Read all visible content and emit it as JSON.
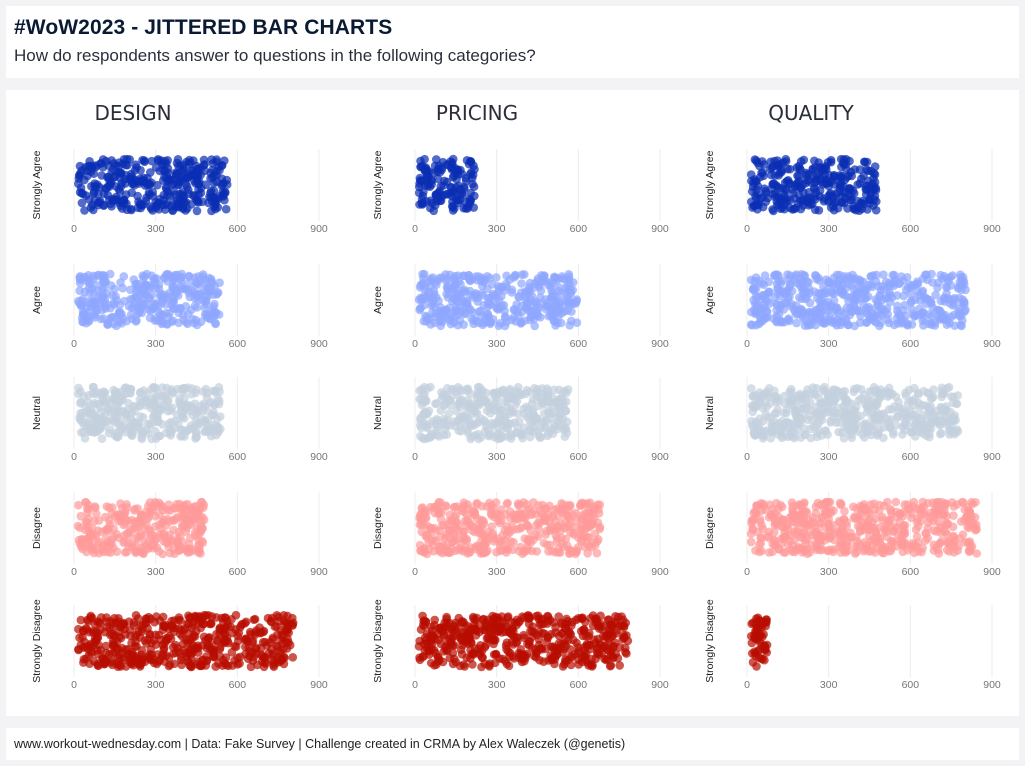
{
  "header": {
    "title": "#WoW2023 - JITTERED BAR CHARTS",
    "subtitle": "How do respondents answer to questions in the following categories?"
  },
  "footer": {
    "text": "www.workout-wednesday.com | Data: Fake Survey | Challenge created in CRMA by Alex Waleczek (@genetis)"
  },
  "colors": {
    "Strongly Agree": "#0a2db3",
    "Agree": "#8ea6ff",
    "Neutral": "#c3d0dd",
    "Disagree": "#ff9a9a",
    "Strongly Disagree": "#b80d00"
  },
  "chart_data": {
    "type": "scatter",
    "jitter": "vertical",
    "categories": [
      "DESIGN",
      "PRICING",
      "QUALITY"
    ],
    "responses": [
      "Strongly Agree",
      "Agree",
      "Neutral",
      "Disagree",
      "Strongly Disagree"
    ],
    "x_ticks": [
      0,
      300,
      600,
      900
    ],
    "xlim": [
      0,
      900
    ],
    "grid": true,
    "series": [
      {
        "category": "DESIGN",
        "counts": {
          "Strongly Agree": 580,
          "Agree": 550,
          "Neutral": 555,
          "Disagree": 495,
          "Strongly Disagree": 820
        }
      },
      {
        "category": "PRICING",
        "counts": {
          "Strongly Agree": 235,
          "Agree": 610,
          "Neutral": 580,
          "Disagree": 700,
          "Strongly Disagree": 800
        }
      },
      {
        "category": "QUALITY",
        "counts": {
          "Strongly Agree": 490,
          "Agree": 820,
          "Neutral": 790,
          "Disagree": 860,
          "Strongly Disagree": 90
        }
      }
    ]
  }
}
